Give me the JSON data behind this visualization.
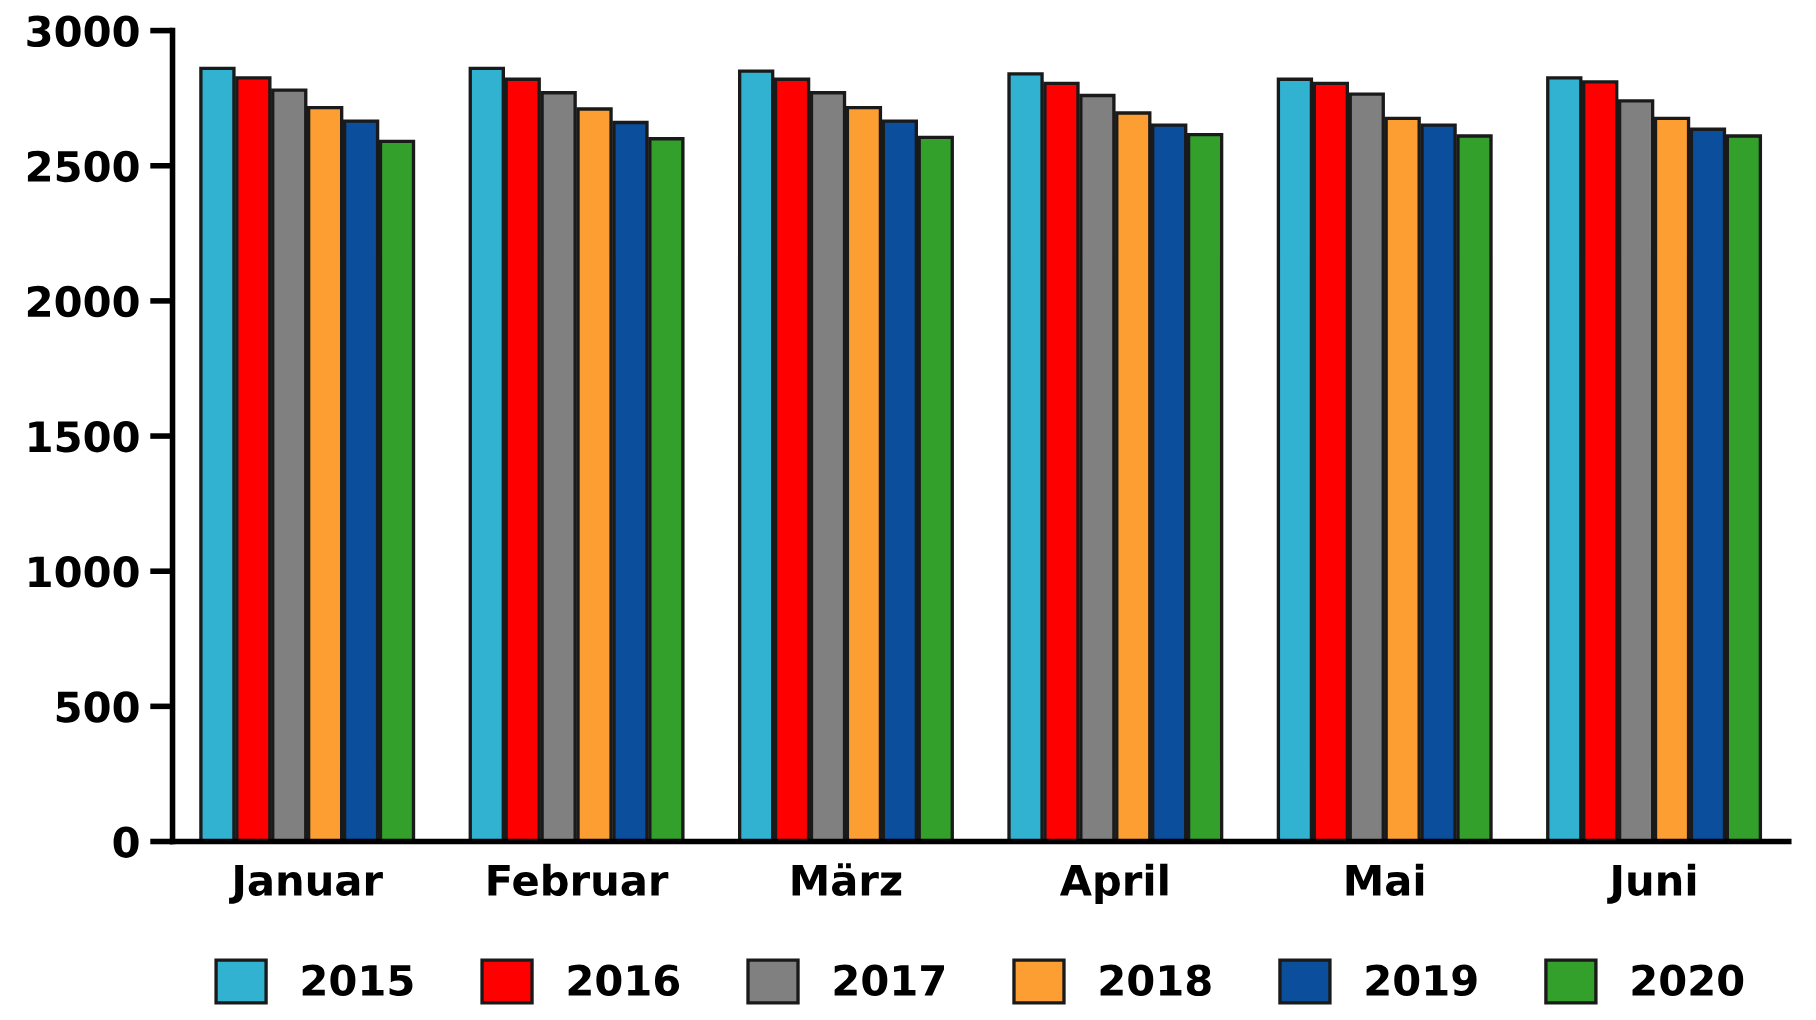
{
  "chart_data": {
    "type": "bar",
    "categories": [
      "Januar",
      "Februar",
      "März",
      "April",
      "Mai",
      "Juni"
    ],
    "series": [
      {
        "name": "2015",
        "color": "#31b2d1",
        "values": [
          2860,
          2860,
          2850,
          2840,
          2820,
          2825
        ]
      },
      {
        "name": "2016",
        "color": "#ff0000",
        "values": [
          2825,
          2820,
          2820,
          2805,
          2805,
          2810
        ]
      },
      {
        "name": "2017",
        "color": "#808080",
        "values": [
          2780,
          2770,
          2770,
          2760,
          2765,
          2740
        ]
      },
      {
        "name": "2018",
        "color": "#fd9e33",
        "values": [
          2715,
          2710,
          2715,
          2695,
          2675,
          2675
        ]
      },
      {
        "name": "2019",
        "color": "#0a4e9c",
        "values": [
          2665,
          2660,
          2665,
          2650,
          2650,
          2635
        ]
      },
      {
        "name": "2020",
        "color": "#33a02c",
        "values": [
          2590,
          2600,
          2605,
          2615,
          2610,
          2610
        ]
      }
    ],
    "ylim": [
      0,
      3000
    ],
    "yticks": [
      0,
      500,
      1000,
      1500,
      2000,
      2500,
      3000
    ],
    "grid": false,
    "legend": "bottom"
  }
}
